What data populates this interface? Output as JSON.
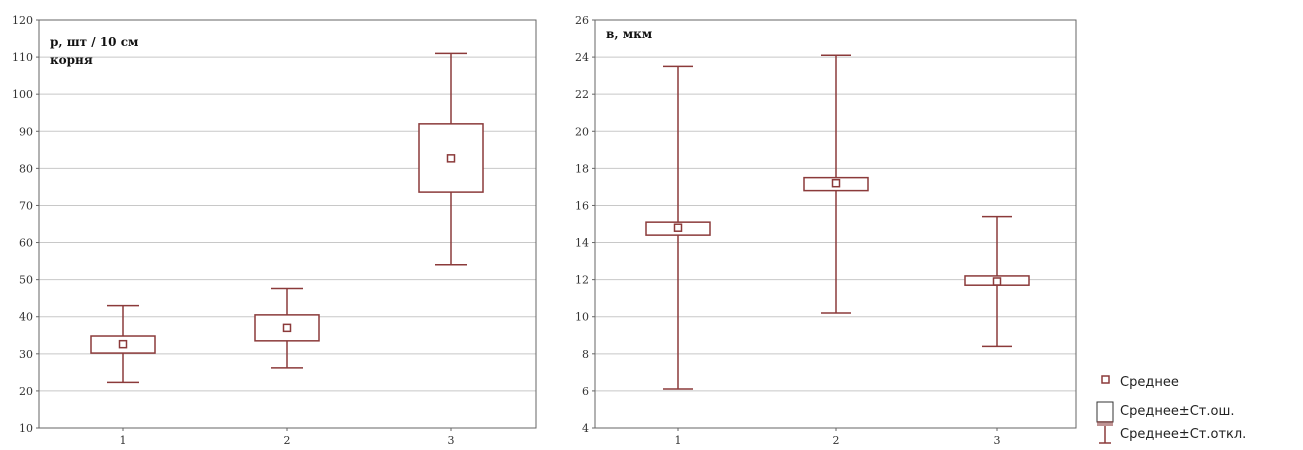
{
  "chart_data": [
    {
      "type": "box",
      "annotation": [
        "p, шт / 10 см",
        "корня"
      ],
      "categories": [
        "1",
        "2",
        "3"
      ],
      "ylim": [
        10,
        120
      ],
      "yticks": [
        10,
        20,
        30,
        40,
        50,
        60,
        70,
        80,
        90,
        100,
        110,
        120
      ],
      "grid": true,
      "series": [
        {
          "x": "1",
          "mean": 32.6,
          "se_low": 30.2,
          "se_high": 34.8,
          "sd_low": 22.3,
          "sd_high": 43.0
        },
        {
          "x": "2",
          "mean": 37.0,
          "se_low": 33.5,
          "se_high": 40.5,
          "sd_low": 26.2,
          "sd_high": 47.6
        },
        {
          "x": "3",
          "mean": 82.7,
          "se_low": 73.6,
          "se_high": 92.0,
          "sd_low": 54.0,
          "sd_high": 111.0
        }
      ]
    },
    {
      "type": "box",
      "annotation": [
        "в, мкм"
      ],
      "categories": [
        "1",
        "2",
        "3"
      ],
      "ylim": [
        4,
        26
      ],
      "yticks": [
        4,
        6,
        8,
        10,
        12,
        14,
        16,
        18,
        20,
        22,
        24,
        26
      ],
      "grid": true,
      "series": [
        {
          "x": "1",
          "mean": 14.8,
          "se_low": 14.4,
          "se_high": 15.1,
          "sd_low": 6.1,
          "sd_high": 23.5
        },
        {
          "x": "2",
          "mean": 17.2,
          "se_low": 16.8,
          "se_high": 17.5,
          "sd_low": 10.2,
          "sd_high": 24.1
        },
        {
          "x": "3",
          "mean": 11.9,
          "se_low": 11.7,
          "se_high": 12.2,
          "sd_low": 8.4,
          "sd_high": 15.4
        }
      ]
    }
  ],
  "legend": {
    "placement": "bottom-right",
    "items": [
      {
        "label": "Среднее",
        "icon": "mean-marker-icon"
      },
      {
        "label": "Среднее±Ст.ош.",
        "icon": "se-box-icon"
      },
      {
        "label": "Среднее±Ст.откл.",
        "icon": "sd-whisker-icon"
      }
    ]
  },
  "colors": {
    "series": "#8b3a3a",
    "grid": "#c8c8c8",
    "frame": "#666666"
  }
}
